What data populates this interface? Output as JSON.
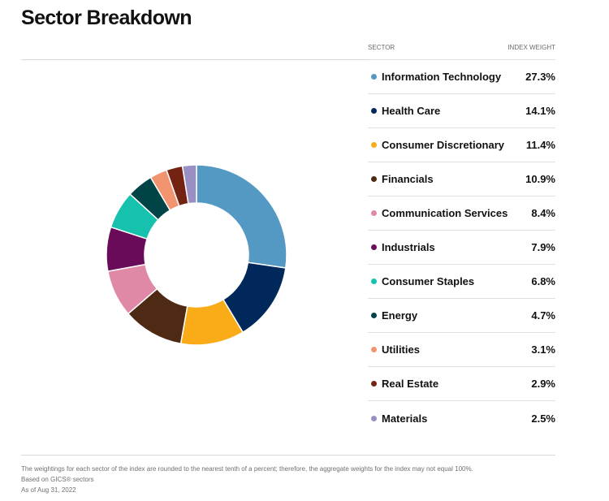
{
  "title": "Sector Breakdown",
  "legend_header": {
    "sector": "SECTOR",
    "weight": "INDEX WEIGHT"
  },
  "chart_data": {
    "type": "pie",
    "title": "Sector Breakdown",
    "categories": [
      "Information Technology",
      "Health Care",
      "Consumer Discretionary",
      "Financials",
      "Communication Services",
      "Industrials",
      "Consumer Staples",
      "Energy",
      "Utilities",
      "Real Estate",
      "Materials"
    ],
    "values": [
      27.3,
      14.1,
      11.4,
      10.9,
      8.4,
      7.9,
      6.8,
      4.7,
      3.1,
      2.9,
      2.5
    ],
    "labels": [
      "27.3%",
      "14.1%",
      "11.4%",
      "10.9%",
      "8.4%",
      "7.9%",
      "6.8%",
      "4.7%",
      "3.1%",
      "2.9%",
      "2.5%"
    ],
    "colors": [
      "#5399c3",
      "#00285a",
      "#f9ab18",
      "#4e2a14",
      "#df89a6",
      "#6a0b5a",
      "#16c2ad",
      "#004448",
      "#f39470",
      "#742313",
      "#9a8fc4"
    ],
    "donut": true
  },
  "footnotes": [
    "The weightings for each sector of the index are rounded to the nearest tenth of a percent; therefore, the aggregate weights for the index may not equal 100%.",
    "Based on GICS® sectors",
    "As of Aug 31, 2022"
  ]
}
